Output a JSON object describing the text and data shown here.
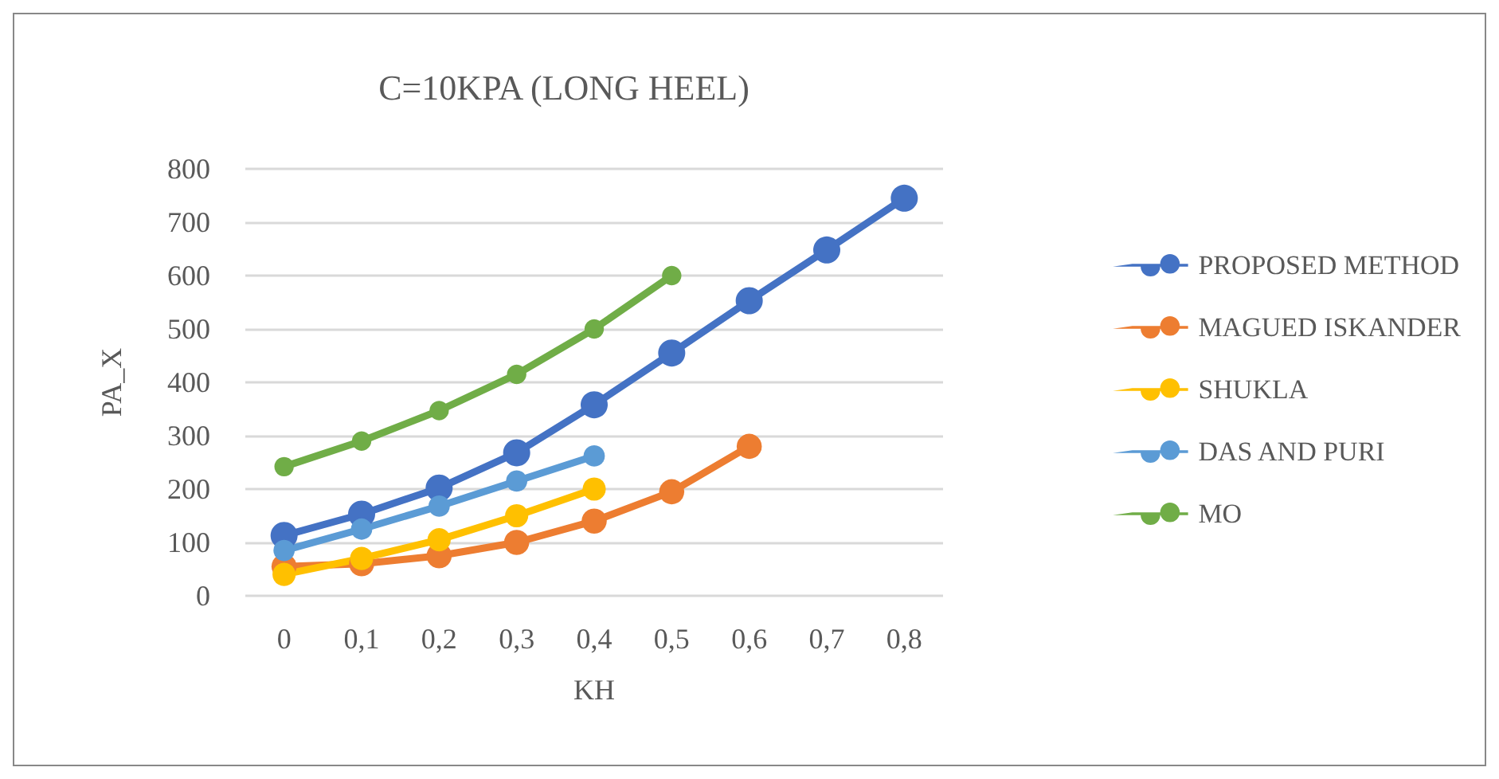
{
  "chart_data": {
    "type": "line",
    "title": "C=10KPA (LONG HEEL)",
    "xlabel": "KH",
    "ylabel": "PA_X",
    "categories": [
      "0",
      "0,1",
      "0,2",
      "0,3",
      "0,4",
      "0,5",
      "0,6",
      "0,7",
      "0,8"
    ],
    "series": [
      {
        "name": "PROPOSED METHOD",
        "color": "#4472c4",
        "values": [
          113,
          153,
          202,
          268,
          358,
          455,
          553,
          648,
          745
        ]
      },
      {
        "name": "MAGUED ISKANDER",
        "color": "#ed7d31",
        "values": [
          55,
          60,
          75,
          100,
          140,
          195,
          280,
          null,
          null
        ]
      },
      {
        "name": "SHUKLA",
        "color": "#ffc000",
        "values": [
          40,
          70,
          105,
          150,
          200,
          null,
          null,
          null,
          null
        ]
      },
      {
        "name": "DAS AND PURI",
        "color": "#5b9bd5",
        "values": [
          85,
          125,
          168,
          215,
          262,
          null,
          null,
          null,
          null
        ]
      },
      {
        "name": "MO",
        "color": "#70ad47",
        "values": [
          242,
          290,
          347,
          415,
          500,
          600,
          null,
          null,
          null
        ]
      }
    ],
    "ylim": [
      0,
      800
    ],
    "yticks": [
      0,
      100,
      200,
      300,
      400,
      500,
      600,
      700,
      800
    ],
    "grid": "y",
    "legend": "right",
    "marker": "circle",
    "line_style": "solid"
  }
}
